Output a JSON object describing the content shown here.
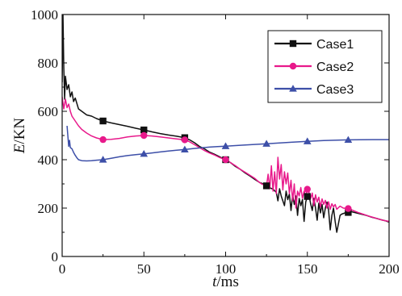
{
  "chart_data": {
    "type": "line",
    "xlabel": "t/ms",
    "ylabel": "E/KN",
    "xlim": [
      0,
      200
    ],
    "ylim": [
      0,
      1000
    ],
    "x_ticks": [
      0,
      50,
      100,
      150,
      200
    ],
    "y_ticks": [
      0,
      200,
      400,
      600,
      800,
      1000
    ],
    "x_tick_labels": [
      "0",
      "50",
      "100",
      "150",
      "200"
    ],
    "y_tick_labels": [
      "0",
      "200",
      "400",
      "600",
      "800",
      "1000"
    ],
    "grid": false,
    "legend_position": "top-right",
    "series": [
      {
        "name": "Case1",
        "color": "#111111",
        "marker": "square",
        "markers_x": [
          25,
          50,
          75,
          100,
          125,
          150,
          175
        ],
        "points": [
          [
            0,
            720
          ],
          [
            0.5,
            1000
          ],
          [
            1,
            780
          ],
          [
            1.5,
            650
          ],
          [
            2,
            745
          ],
          [
            3,
            690
          ],
          [
            4,
            710
          ],
          [
            5,
            660
          ],
          [
            6,
            680
          ],
          [
            7,
            640
          ],
          [
            8,
            655
          ],
          [
            10,
            610
          ],
          [
            12,
            600
          ],
          [
            15,
            585
          ],
          [
            18,
            580
          ],
          [
            21,
            570
          ],
          [
            25,
            560
          ],
          [
            30,
            552
          ],
          [
            35,
            545
          ],
          [
            40,
            538
          ],
          [
            45,
            530
          ],
          [
            50,
            523
          ],
          [
            55,
            515
          ],
          [
            60,
            508
          ],
          [
            65,
            502
          ],
          [
            70,
            497
          ],
          [
            75,
            491
          ],
          [
            78,
            482
          ],
          [
            81,
            470
          ],
          [
            84,
            455
          ],
          [
            87,
            445
          ],
          [
            90,
            432
          ],
          [
            93,
            423
          ],
          [
            96,
            413
          ],
          [
            100,
            400
          ],
          [
            103,
            388
          ],
          [
            106,
            372
          ],
          [
            109,
            360
          ],
          [
            112,
            345
          ],
          [
            115,
            332
          ],
          [
            118,
            318
          ],
          [
            121,
            305
          ],
          [
            124,
            298
          ],
          [
            125,
            292
          ],
          [
            127,
            284
          ],
          [
            129,
            278
          ],
          [
            131,
            265
          ],
          [
            132,
            230
          ],
          [
            133,
            280
          ],
          [
            134,
            250
          ],
          [
            136,
            210
          ],
          [
            137,
            270
          ],
          [
            138,
            235
          ],
          [
            139,
            258
          ],
          [
            140,
            190
          ],
          [
            141,
            255
          ],
          [
            142,
            215
          ],
          [
            143,
            250
          ],
          [
            144,
            170
          ],
          [
            145,
            240
          ],
          [
            146,
            210
          ],
          [
            147,
            235
          ],
          [
            148,
            145
          ],
          [
            149,
            225
          ],
          [
            150,
            248
          ],
          [
            151,
            255
          ],
          [
            152,
            218
          ],
          [
            153,
            190
          ],
          [
            154,
            240
          ],
          [
            155,
            200
          ],
          [
            156,
            150
          ],
          [
            157,
            220
          ],
          [
            158,
            180
          ],
          [
            159,
            215
          ],
          [
            160,
            160
          ],
          [
            161,
            200
          ],
          [
            162,
            225
          ],
          [
            163,
            190
          ],
          [
            164,
            110
          ],
          [
            165,
            170
          ],
          [
            166,
            200
          ],
          [
            167,
            145
          ],
          [
            168,
            100
          ],
          [
            169,
            135
          ],
          [
            170,
            170
          ],
          [
            171,
            175
          ],
          [
            173,
            180
          ],
          [
            175,
            182
          ],
          [
            177,
            185
          ],
          [
            180,
            180
          ],
          [
            183,
            175
          ],
          [
            186,
            170
          ],
          [
            189,
            163
          ],
          [
            192,
            158
          ],
          [
            195,
            152
          ],
          [
            198,
            147
          ],
          [
            200,
            142
          ]
        ]
      },
      {
        "name": "Case2",
        "color": "#e8198b",
        "marker": "circle",
        "markers_x": [
          25,
          50,
          75,
          100,
          150,
          175
        ],
        "points": [
          [
            0,
            660
          ],
          [
            1,
            610
          ],
          [
            2,
            650
          ],
          [
            3,
            615
          ],
          [
            4,
            630
          ],
          [
            5,
            600
          ],
          [
            6,
            580
          ],
          [
            8,
            560
          ],
          [
            10,
            540
          ],
          [
            12,
            525
          ],
          [
            15,
            510
          ],
          [
            18,
            498
          ],
          [
            21,
            490
          ],
          [
            25,
            483
          ],
          [
            30,
            484
          ],
          [
            35,
            488
          ],
          [
            40,
            494
          ],
          [
            45,
            498
          ],
          [
            50,
            500
          ],
          [
            55,
            498
          ],
          [
            60,
            494
          ],
          [
            65,
            490
          ],
          [
            70,
            486
          ],
          [
            75,
            482
          ],
          [
            78,
            474
          ],
          [
            81,
            462
          ],
          [
            84,
            450
          ],
          [
            87,
            438
          ],
          [
            90,
            428
          ],
          [
            93,
            420
          ],
          [
            96,
            410
          ],
          [
            100,
            400
          ],
          [
            103,
            388
          ],
          [
            106,
            375
          ],
          [
            109,
            360
          ],
          [
            112,
            348
          ],
          [
            115,
            335
          ],
          [
            118,
            322
          ],
          [
            120,
            310
          ],
          [
            122,
            300
          ],
          [
            124,
            295
          ],
          [
            125,
            290
          ],
          [
            126,
            340
          ],
          [
            127,
            280
          ],
          [
            128,
            375
          ],
          [
            129,
            270
          ],
          [
            130,
            350
          ],
          [
            131,
            260
          ],
          [
            132,
            410
          ],
          [
            133,
            320
          ],
          [
            134,
            380
          ],
          [
            135,
            275
          ],
          [
            136,
            350
          ],
          [
            137,
            300
          ],
          [
            138,
            345
          ],
          [
            139,
            260
          ],
          [
            140,
            315
          ],
          [
            141,
            230
          ],
          [
            142,
            300
          ],
          [
            143,
            200
          ],
          [
            144,
            270
          ],
          [
            145,
            250
          ],
          [
            146,
            285
          ],
          [
            147,
            240
          ],
          [
            148,
            270
          ],
          [
            149,
            250
          ],
          [
            150,
            278
          ],
          [
            151,
            265
          ],
          [
            152,
            240
          ],
          [
            153,
            262
          ],
          [
            154,
            210
          ],
          [
            155,
            255
          ],
          [
            156,
            225
          ],
          [
            157,
            245
          ],
          [
            158,
            205
          ],
          [
            159,
            238
          ],
          [
            160,
            215
          ],
          [
            161,
            232
          ],
          [
            162,
            200
          ],
          [
            163,
            226
          ],
          [
            164,
            195
          ],
          [
            165,
            218
          ],
          [
            166,
            205
          ],
          [
            167,
            215
          ],
          [
            168,
            195
          ],
          [
            170,
            208
          ],
          [
            172,
            200
          ],
          [
            175,
            198
          ],
          [
            178,
            190
          ],
          [
            181,
            182
          ],
          [
            184,
            175
          ],
          [
            187,
            168
          ],
          [
            190,
            162
          ],
          [
            193,
            156
          ],
          [
            196,
            150
          ],
          [
            200,
            145
          ]
        ]
      },
      {
        "name": "Case3",
        "color": "#3d4fa8",
        "marker": "triangle",
        "markers_x": [
          25,
          50,
          75,
          100,
          125,
          150,
          175
        ],
        "points": [
          [
            3,
            540
          ],
          [
            4,
            455
          ],
          [
            4.5,
            480
          ],
          [
            5,
            450
          ],
          [
            6,
            445
          ],
          [
            7,
            430
          ],
          [
            8,
            418
          ],
          [
            9,
            408
          ],
          [
            10,
            400
          ],
          [
            12,
            396
          ],
          [
            15,
            395
          ],
          [
            18,
            396
          ],
          [
            21,
            398
          ],
          [
            25,
            400
          ],
          [
            30,
            406
          ],
          [
            35,
            412
          ],
          [
            40,
            417
          ],
          [
            45,
            421
          ],
          [
            50,
            424
          ],
          [
            55,
            428
          ],
          [
            60,
            432
          ],
          [
            65,
            436
          ],
          [
            70,
            439
          ],
          [
            75,
            442
          ],
          [
            80,
            446
          ],
          [
            85,
            449
          ],
          [
            90,
            452
          ],
          [
            95,
            454
          ],
          [
            100,
            456
          ],
          [
            110,
            460
          ],
          [
            125,
            466
          ],
          [
            140,
            472
          ],
          [
            150,
            476
          ],
          [
            160,
            479
          ],
          [
            175,
            482
          ],
          [
            190,
            483
          ],
          [
            200,
            483
          ]
        ]
      }
    ]
  }
}
